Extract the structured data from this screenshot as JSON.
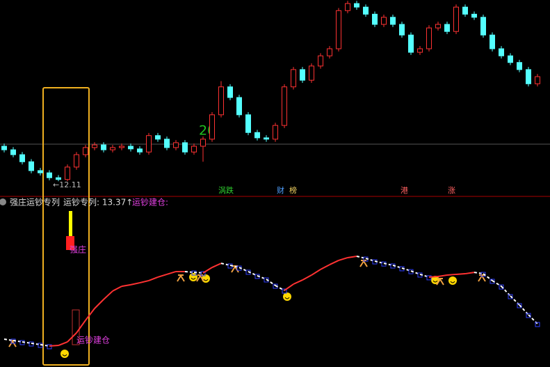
{
  "chart_data": [
    {
      "type": "candlestick",
      "ylim": [
        11.8,
        16.2
      ],
      "up_color": "#ff3232",
      "down_color": "#54ffff",
      "open": [
        12.9,
        12.82,
        12.71,
        12.55,
        12.35,
        12.3,
        12.19,
        12.15,
        12.43,
        12.71,
        12.87,
        12.93,
        12.82,
        12.87,
        12.9,
        12.84,
        12.77,
        13.14,
        13.06,
        12.87,
        12.98,
        12.77,
        12.9,
        13.06,
        13.61,
        14.24,
        14.0,
        13.61,
        13.21,
        13.09,
        13.06,
        13.37,
        14.24,
        14.63,
        14.39,
        14.71,
        14.94,
        15.1,
        15.96,
        16.12,
        16.04,
        15.88,
        15.65,
        15.81,
        15.65,
        15.41,
        15.02,
        15.1,
        15.57,
        15.65,
        15.49,
        16.04,
        15.88,
        15.81,
        15.41,
        15.1,
        14.94,
        14.79,
        14.63,
        14.31
      ],
      "high": [
        12.96,
        12.88,
        12.77,
        12.61,
        12.41,
        12.36,
        12.25,
        12.49,
        12.77,
        12.93,
        12.99,
        12.99,
        12.93,
        12.96,
        12.96,
        12.9,
        13.2,
        13.2,
        13.12,
        13.04,
        13.04,
        12.96,
        13.12,
        13.67,
        14.37,
        14.3,
        14.06,
        13.67,
        13.27,
        13.15,
        13.43,
        14.3,
        14.69,
        14.69,
        14.77,
        15.0,
        15.16,
        16.02,
        16.18,
        16.18,
        16.1,
        15.94,
        15.87,
        15.87,
        15.71,
        15.47,
        15.16,
        15.63,
        15.71,
        15.71,
        16.1,
        16.1,
        15.94,
        15.87,
        15.47,
        15.16,
        15.0,
        14.85,
        14.69,
        14.53
      ],
      "low": [
        12.76,
        12.65,
        12.49,
        12.29,
        12.24,
        12.13,
        12.11,
        12.11,
        12.37,
        12.65,
        12.81,
        12.76,
        12.76,
        12.81,
        12.78,
        12.71,
        12.71,
        13.0,
        12.81,
        12.81,
        12.71,
        12.71,
        12.55,
        13.0,
        13.55,
        13.94,
        13.55,
        13.15,
        13.03,
        13.0,
        13.0,
        13.31,
        14.18,
        14.33,
        14.33,
        14.65,
        14.88,
        15.04,
        15.9,
        15.98,
        15.82,
        15.59,
        15.59,
        15.59,
        15.35,
        14.96,
        14.96,
        15.04,
        15.51,
        15.43,
        15.43,
        15.82,
        15.75,
        15.35,
        15.04,
        14.88,
        14.73,
        14.57,
        14.25,
        14.25
      ],
      "close": [
        12.82,
        12.71,
        12.55,
        12.35,
        12.3,
        12.19,
        12.15,
        12.43,
        12.71,
        12.87,
        12.93,
        12.82,
        12.87,
        12.9,
        12.84,
        12.77,
        13.14,
        13.06,
        12.87,
        12.98,
        12.77,
        12.9,
        13.06,
        13.61,
        14.24,
        14.0,
        13.61,
        13.21,
        13.09,
        13.06,
        13.37,
        14.24,
        14.63,
        14.39,
        14.71,
        14.94,
        15.1,
        15.96,
        16.12,
        16.04,
        15.88,
        15.65,
        15.81,
        15.65,
        15.41,
        15.02,
        15.1,
        15.57,
        15.65,
        15.49,
        16.04,
        15.88,
        15.81,
        15.41,
        15.1,
        14.94,
        14.79,
        14.63,
        14.31,
        14.47
      ],
      "annotations": [
        "20",
        "←12.11"
      ],
      "events": [
        "涡跌",
        "财",
        "榜",
        "港",
        "涨"
      ]
    },
    {
      "type": "line",
      "title": "强庄运钞专列",
      "legend_items": [
        "运钞专列: 13.37↑",
        "运钞建仓:"
      ],
      "annotations": [
        "强庄",
        "运钞建仓"
      ],
      "ylim": [
        0,
        100
      ],
      "up_color": "#ff3232",
      "down_color": "#ffffff",
      "values": [
        15.0,
        14.1,
        13.2,
        12.3,
        11.4,
        10.5,
        10.9,
        13.2,
        19.1,
        27.3,
        35.0,
        40.9,
        46.4,
        49.5,
        50.5,
        51.8,
        53.2,
        55.5,
        57.3,
        59.1,
        59.1,
        58.6,
        58.2,
        61.8,
        64.5,
        63.2,
        61.8,
        59.1,
        56.4,
        54.1,
        50.0,
        46.8,
        50.9,
        53.6,
        56.8,
        60.5,
        63.6,
        66.4,
        68.2,
        69.1,
        67.7,
        65.9,
        64.5,
        63.2,
        61.4,
        59.5,
        57.3,
        55.5,
        55.9,
        56.8,
        57.3,
        57.7,
        58.6,
        57.7,
        53.2,
        49.5,
        43.2,
        37.3,
        30.9,
        25.0
      ]
    }
  ]
}
